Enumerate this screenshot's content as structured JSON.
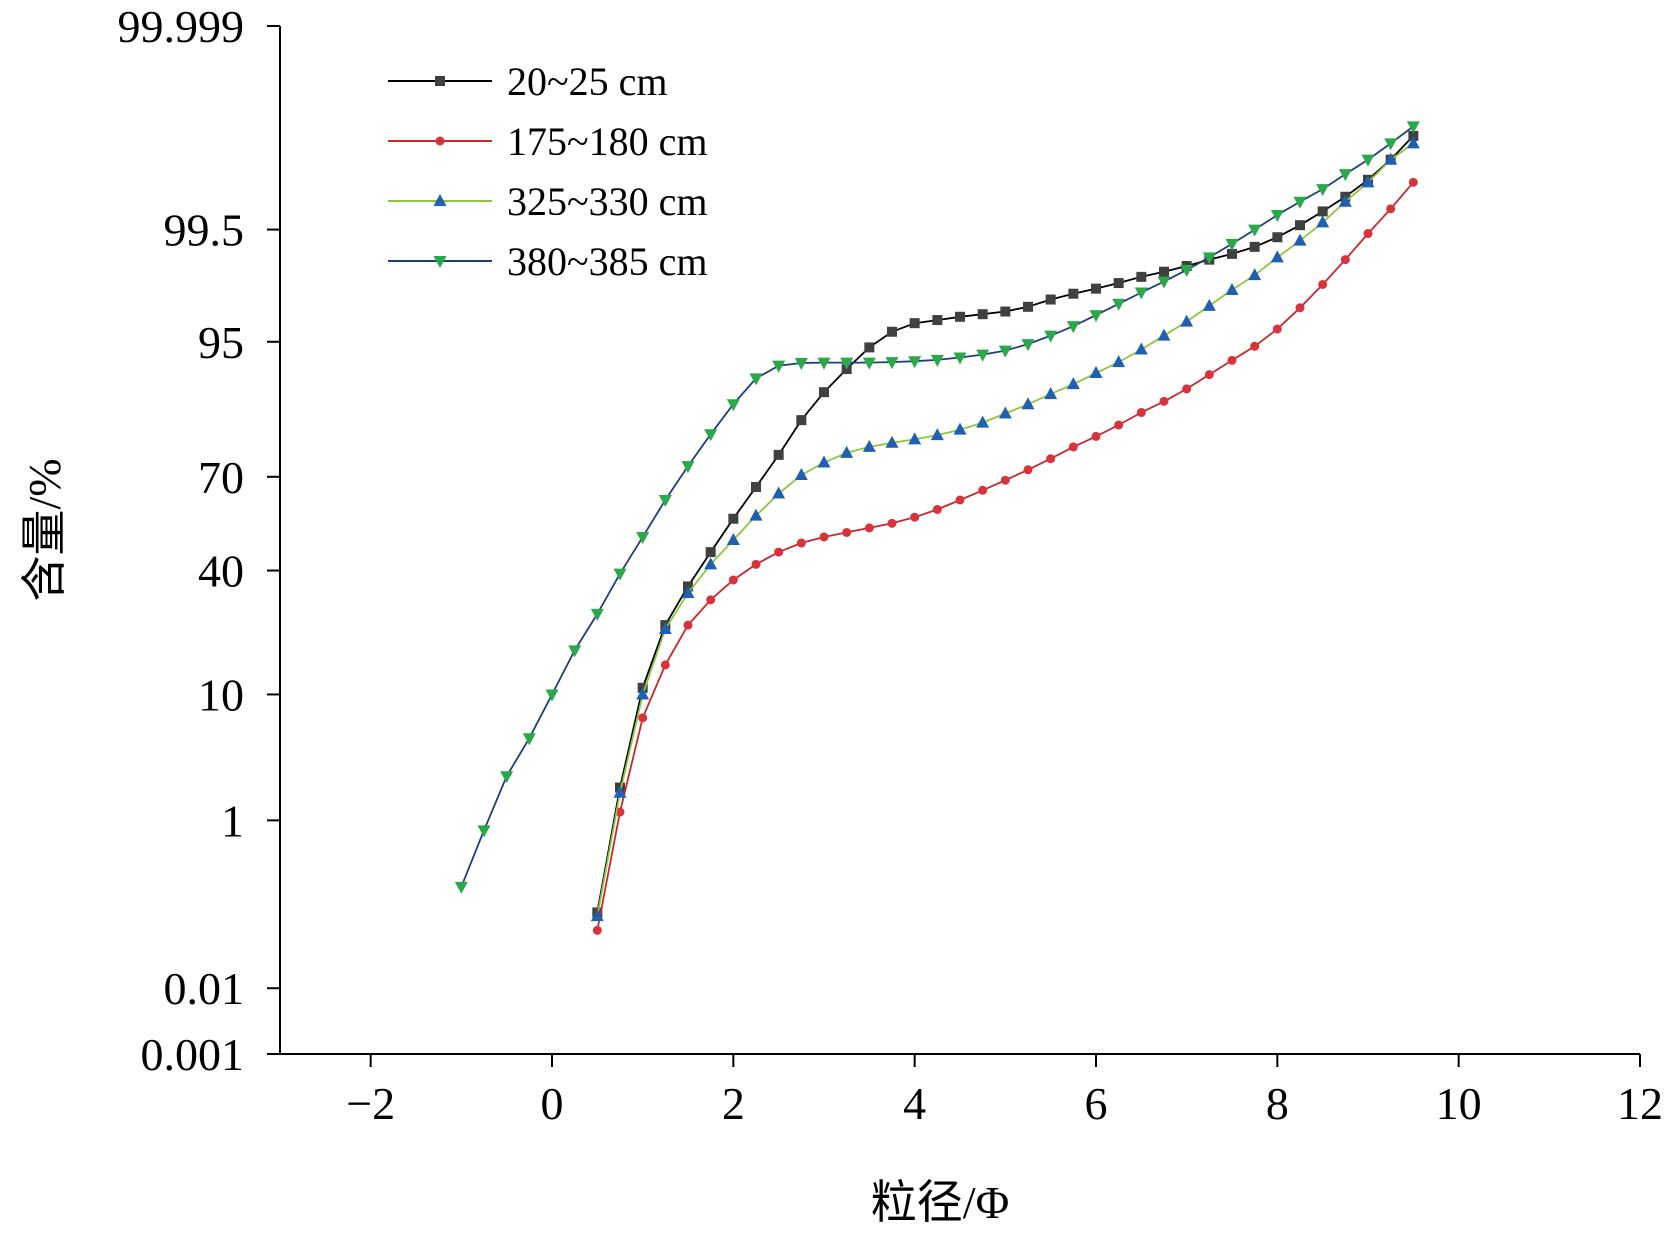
{
  "chart_data": {
    "type": "line",
    "y_scale": "probability",
    "xlabel": "粒径/Φ",
    "ylabel": "含量/%",
    "xlim": [
      -3,
      12
    ],
    "ylim": [
      0.001,
      99.999
    ],
    "x_ticks": [
      -2,
      0,
      2,
      4,
      6,
      8,
      10,
      12
    ],
    "x_tick_labels": [
      "−2",
      "0",
      "2",
      "4",
      "6",
      "8",
      "10",
      "12"
    ],
    "y_ticks": [
      0.001,
      0.01,
      1,
      10,
      40,
      70,
      95,
      99.5,
      99.999
    ],
    "y_tick_labels": [
      "0.001",
      "0.01",
      "1",
      "10",
      "40",
      "70",
      "95",
      "99.5",
      "99.999"
    ],
    "grid": false,
    "legend_position": "top-left",
    "series": [
      {
        "name": "20~25 cm",
        "color": "#000000",
        "marker": "square",
        "marker_color": "#404040",
        "x": [
          0.5,
          0.75,
          1.0,
          1.25,
          1.5,
          1.75,
          2.0,
          2.25,
          2.5,
          2.75,
          3.0,
          3.25,
          3.5,
          3.75,
          4.0,
          4.25,
          4.5,
          4.75,
          5.0,
          5.25,
          5.5,
          5.75,
          6.0,
          6.25,
          6.5,
          6.75,
          7.0,
          7.25,
          7.5,
          7.75,
          8.0,
          8.25,
          8.5,
          8.75,
          9.0,
          9.25,
          9.5
        ],
        "y": [
          0.1,
          2.0,
          11,
          24,
          35,
          46,
          57,
          67,
          76,
          84,
          89,
          92.2,
          94.5,
          95.8,
          96.4,
          96.6,
          96.8,
          96.95,
          97.1,
          97.35,
          97.7,
          97.95,
          98.15,
          98.35,
          98.55,
          98.7,
          98.85,
          99.0,
          99.12,
          99.25,
          99.4,
          99.55,
          99.68,
          99.78,
          99.86,
          99.92,
          99.96
        ]
      },
      {
        "name": "175~180 cm",
        "color": "#c8282d",
        "marker": "circle",
        "marker_color": "#d8323c",
        "x": [
          0.5,
          0.75,
          1.0,
          1.25,
          1.5,
          1.75,
          2.0,
          2.25,
          2.5,
          2.75,
          3.0,
          3.25,
          3.5,
          3.75,
          4.0,
          4.25,
          4.5,
          4.75,
          5.0,
          5.25,
          5.5,
          5.75,
          6.0,
          6.25,
          6.5,
          6.75,
          7.0,
          7.25,
          7.5,
          7.75,
          8.0,
          8.25,
          8.5,
          8.75,
          9.0,
          9.25,
          9.5
        ],
        "y": [
          0.06,
          1.2,
          7,
          15,
          24,
          31,
          37,
          42,
          46,
          49,
          51,
          52.5,
          54,
          55.5,
          57.5,
          60,
          63,
          66,
          69,
          72,
          75,
          78,
          80.5,
          83,
          85.5,
          87.5,
          89.5,
          91.5,
          93.2,
          94.6,
          96.0,
          97.3,
          98.3,
          99.0,
          99.45,
          99.7,
          99.85
        ]
      },
      {
        "name": "325~330 cm",
        "color": "#8ec63f",
        "marker": "triangle-up",
        "marker_color": "#2060b0",
        "x": [
          0.5,
          0.75,
          1.0,
          1.25,
          1.5,
          1.75,
          2.0,
          2.25,
          2.5,
          2.75,
          3.0,
          3.25,
          3.5,
          3.75,
          4.0,
          4.25,
          4.5,
          4.75,
          5.0,
          5.25,
          5.5,
          5.75,
          6.0,
          6.25,
          6.5,
          6.75,
          7.0,
          7.25,
          7.5,
          7.75,
          8.0,
          8.25,
          8.5,
          8.75,
          9.0,
          9.25,
          9.5
        ],
        "y": [
          0.09,
          1.8,
          10,
          23,
          33,
          42,
          50,
          58,
          65,
          70.5,
          74,
          76.5,
          78,
          79,
          79.8,
          80.8,
          82,
          83.5,
          85.3,
          87,
          88.7,
          90.2,
          91.7,
          93,
          94.3,
          95.5,
          96.5,
          97.4,
          98.1,
          98.6,
          99.05,
          99.35,
          99.58,
          99.75,
          99.85,
          99.92,
          99.95
        ]
      },
      {
        "name": "380~385 cm",
        "color": "#1f3e7c",
        "marker": "triangle-down",
        "marker_color": "#2aa84a",
        "x": [
          -1.0,
          -0.75,
          -0.5,
          -0.25,
          0.0,
          0.25,
          0.5,
          0.75,
          1.0,
          1.25,
          1.5,
          1.75,
          2.0,
          2.25,
          2.5,
          2.75,
          3.0,
          3.25,
          3.5,
          3.75,
          4.0,
          4.25,
          4.5,
          4.75,
          5.0,
          5.25,
          5.5,
          5.75,
          6.0,
          6.25,
          6.5,
          6.75,
          7.0,
          7.25,
          7.5,
          7.75,
          8.0,
          8.25,
          8.5,
          8.75,
          9.0,
          9.25,
          9.5
        ],
        "y": [
          0.2,
          0.8,
          2.5,
          5.0,
          10,
          18,
          27,
          39,
          51,
          63,
          73,
          81,
          87,
          91,
          92.6,
          92.9,
          92.95,
          92.95,
          92.95,
          93.0,
          93.1,
          93.25,
          93.5,
          93.8,
          94.2,
          94.8,
          95.5,
          96.2,
          96.9,
          97.5,
          98.0,
          98.4,
          98.75,
          99.05,
          99.3,
          99.5,
          99.65,
          99.75,
          99.82,
          99.88,
          99.92,
          99.95,
          99.97
        ]
      }
    ]
  }
}
